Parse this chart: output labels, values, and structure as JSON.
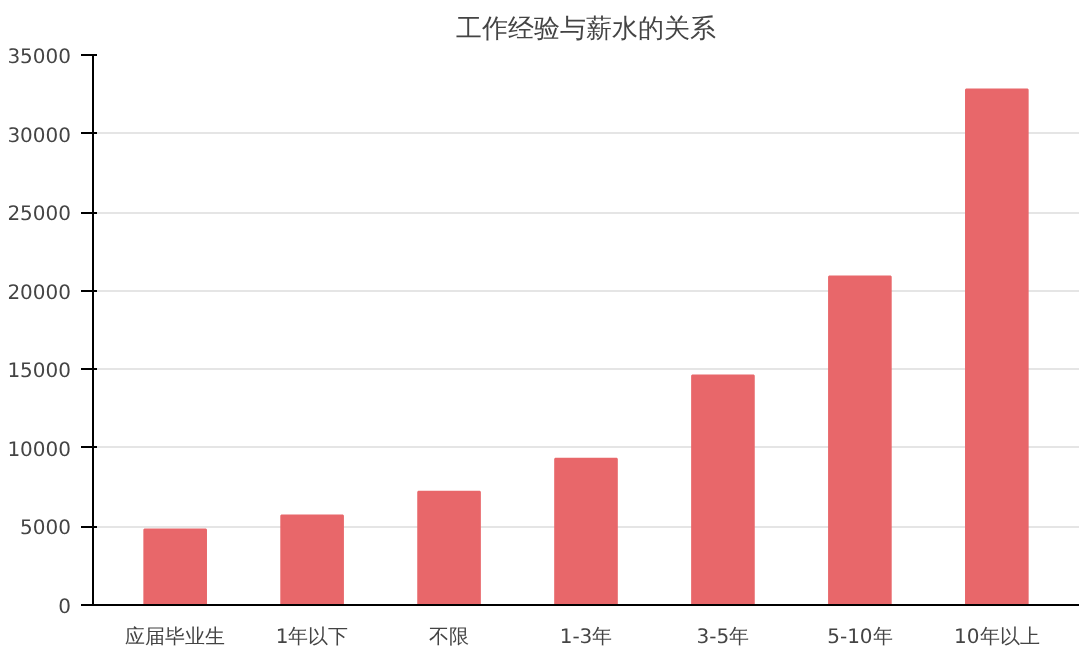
{
  "chart_data": {
    "type": "bar",
    "title": "工作经验与薪水的关系",
    "categories": [
      "应届毕业生",
      "1年以下",
      "不限",
      "1-3年",
      "3-5年",
      "5-10年",
      "10年以上"
    ],
    "values": [
      4800,
      5700,
      7200,
      9300,
      14600,
      20900,
      32800
    ],
    "color": "#e8676a",
    "ylim": [
      0,
      35000
    ],
    "yticks": [
      0,
      5000,
      10000,
      15000,
      20000,
      25000,
      30000,
      35000
    ],
    "grid": "y"
  }
}
